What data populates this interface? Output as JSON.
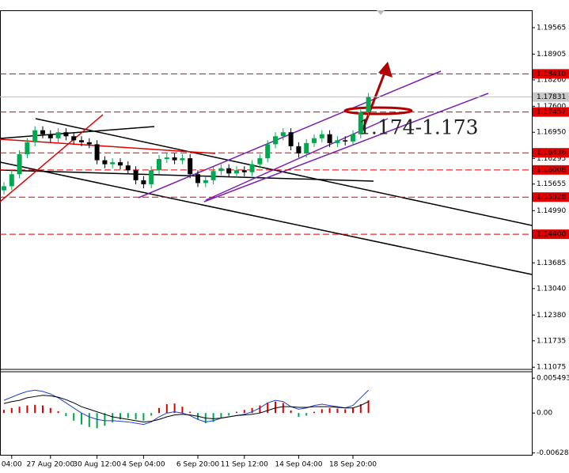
{
  "chart_data": [
    {
      "type": "candlestick",
      "categories": [
        null,
        "04:00",
        null,
        null,
        null,
        null,
        "27 Aug 20:00",
        null,
        null,
        null,
        null,
        null,
        "30 Aug 12:00",
        null,
        null,
        null,
        null,
        null,
        "4 Sep 04:00",
        null,
        null,
        null,
        null,
        null,
        null,
        "6 Sep 20:00",
        null,
        null,
        null,
        null,
        null,
        "11 Sep 12:00",
        null,
        null,
        null,
        null,
        null,
        null,
        "14 Sep 04:00",
        null,
        null,
        null,
        null,
        null,
        null,
        "18 Sep 20:00",
        null,
        null
      ],
      "open": [
        1.155,
        1.156,
        1.159,
        1.164,
        1.167,
        1.17,
        1.169,
        1.168,
        1.1695,
        1.1685,
        1.1675,
        1.167,
        1.1665,
        1.1625,
        1.1615,
        1.162,
        1.1612,
        1.16,
        1.1575,
        1.1565,
        1.16,
        1.1628,
        1.1632,
        1.1625,
        1.163,
        1.159,
        1.1568,
        1.1575,
        1.1598,
        1.1605,
        1.1592,
        1.16,
        1.1595,
        1.1615,
        1.163,
        1.1665,
        1.1685,
        1.1695,
        1.166,
        1.1642,
        1.1668,
        1.168,
        1.169,
        1.1668,
        1.1675,
        1.1672,
        1.169,
        1.1745
      ],
      "high": [
        1.157,
        1.16,
        1.165,
        1.168,
        1.171,
        1.171,
        1.17,
        1.1705,
        1.1705,
        1.1695,
        1.1685,
        1.168,
        1.1675,
        1.1635,
        1.163,
        1.163,
        1.1622,
        1.161,
        1.1585,
        1.161,
        1.1638,
        1.1642,
        1.1642,
        1.164,
        1.164,
        1.16,
        1.1585,
        1.1608,
        1.1615,
        1.1615,
        1.161,
        1.161,
        1.1625,
        1.164,
        1.1675,
        1.1695,
        1.1705,
        1.1705,
        1.167,
        1.1678,
        1.169,
        1.17,
        1.17,
        1.1685,
        1.1685,
        1.17,
        1.1755,
        1.1793
      ],
      "low": [
        1.154,
        1.155,
        1.158,
        1.163,
        1.166,
        1.168,
        1.167,
        1.167,
        1.1675,
        1.1665,
        1.166,
        1.1655,
        1.1615,
        1.1605,
        1.1605,
        1.1602,
        1.159,
        1.1565,
        1.1555,
        1.1555,
        1.159,
        1.1618,
        1.1615,
        1.1615,
        1.158,
        1.1558,
        1.1558,
        1.1565,
        1.1588,
        1.1582,
        1.1582,
        1.1585,
        1.1585,
        1.1605,
        1.162,
        1.1655,
        1.1675,
        1.165,
        1.1632,
        1.1632,
        1.1658,
        1.167,
        1.1658,
        1.1658,
        1.1662,
        1.1662,
        1.168,
        1.1735
      ],
      "close": [
        1.156,
        1.159,
        1.164,
        1.167,
        1.17,
        1.169,
        1.168,
        1.1695,
        1.1685,
        1.1675,
        1.167,
        1.1665,
        1.1625,
        1.1615,
        1.162,
        1.1612,
        1.16,
        1.1575,
        1.1565,
        1.16,
        1.1628,
        1.1632,
        1.1625,
        1.163,
        1.159,
        1.1568,
        1.1575,
        1.1598,
        1.1605,
        1.1592,
        1.16,
        1.1595,
        1.1615,
        1.163,
        1.1665,
        1.1685,
        1.1695,
        1.166,
        1.1642,
        1.1668,
        1.168,
        1.169,
        1.1668,
        1.1675,
        1.1672,
        1.169,
        1.1745,
        1.1783
      ],
      "up_color": "#00a84f",
      "down_color": "#000000",
      "ylim": [
        1.1104,
        1.2
      ],
      "yticks": [
        1.19565,
        1.18905,
        {
          "value": 1.1826,
          "label": "1.18260"
        },
        {
          "value": 1.176,
          "label": "1.17600"
        },
        {
          "value": 1.1695,
          "label": "1.16950"
        },
        1.16295,
        1.15655,
        {
          "value": 1.1499,
          "label": "1.14990"
        },
        1.13685,
        {
          "value": 1.1304,
          "label": "1.13040"
        },
        {
          "value": 1.1238,
          "label": "1.12380"
        },
        1.11735,
        1.11075
      ],
      "levels": [
        {
          "value": 1.1841,
          "label": "1.18410"
        },
        1.17457,
        1.16436,
        1.16008,
        1.15328,
        {
          "value": 1.144,
          "label": "1.14400"
        }
      ],
      "level_color": "#e00000",
      "current_price": 1.17831,
      "annotation": "1.174-1.173"
    },
    {
      "type": "macd",
      "histogram": [
        0.0005,
        0.0008,
        0.001,
        0.0012,
        0.0013,
        0.0012,
        0.0008,
        0.0003,
        -0.0005,
        -0.0012,
        -0.0018,
        -0.0022,
        -0.0024,
        -0.002,
        -0.0015,
        -0.001,
        -0.0008,
        -0.001,
        -0.0012,
        -0.0004,
        0.0008,
        0.0014,
        0.0015,
        0.001,
        0.0002,
        -0.001,
        -0.0016,
        -0.0014,
        -0.0008,
        -0.0004,
        0.0002,
        0.0005,
        0.0008,
        0.0012,
        0.0016,
        0.0018,
        0.0016,
        0.0004,
        -0.0006,
        -0.0004,
        0.0002,
        0.0006,
        0.0008,
        0.0007,
        0.0006,
        0.0008,
        0.0014,
        0.002
      ],
      "line1": [
        0.002,
        0.0025,
        0.003,
        0.0034,
        0.0036,
        0.0034,
        0.003,
        0.0024,
        0.0016,
        0.0008,
        0.0,
        -0.0006,
        -0.001,
        -0.0012,
        -0.0012,
        -0.0013,
        -0.0014,
        -0.0016,
        -0.0018,
        -0.0014,
        -0.0006,
        0.0,
        0.0002,
        0.0,
        -0.0004,
        -0.001,
        -0.0014,
        -0.0012,
        -0.0008,
        -0.0006,
        -0.0004,
        -0.0002,
        0.0002,
        0.0008,
        0.0016,
        0.002,
        0.0018,
        0.001,
        0.0006,
        0.0008,
        0.0012,
        0.0014,
        0.0012,
        0.001,
        0.0008,
        0.0012,
        0.0024,
        0.0036
      ],
      "line2": [
        0.0015,
        0.0018,
        0.002,
        0.0024,
        0.0026,
        0.0028,
        0.0027,
        0.0025,
        0.0021,
        0.0016,
        0.001,
        0.0006,
        0.0002,
        -0.0002,
        -0.0006,
        -0.0008,
        -0.001,
        -0.0012,
        -0.0014,
        -0.0013,
        -0.001,
        -0.0006,
        -0.0003,
        -0.0002,
        -0.0003,
        -0.0005,
        -0.0008,
        -0.0009,
        -0.0008,
        -0.0006,
        -0.0004,
        -0.0003,
        -0.0002,
        0.0,
        0.0004,
        0.0008,
        0.001,
        0.001,
        0.0009,
        0.0009,
        0.001,
        0.001,
        0.001,
        0.0009,
        0.0008,
        0.0008,
        0.0012,
        0.0018
      ],
      "up_color": "#e00000",
      "down_color": "#00a84f",
      "line1_color": "#1f3fd0",
      "line2_color": "#000000",
      "ylim": [
        -0.0067,
        0.0065
      ],
      "yticks": [
        0.005493,
        {
          "value": 0,
          "label": "0.00"
        },
        -0.006283
      ]
    }
  ]
}
